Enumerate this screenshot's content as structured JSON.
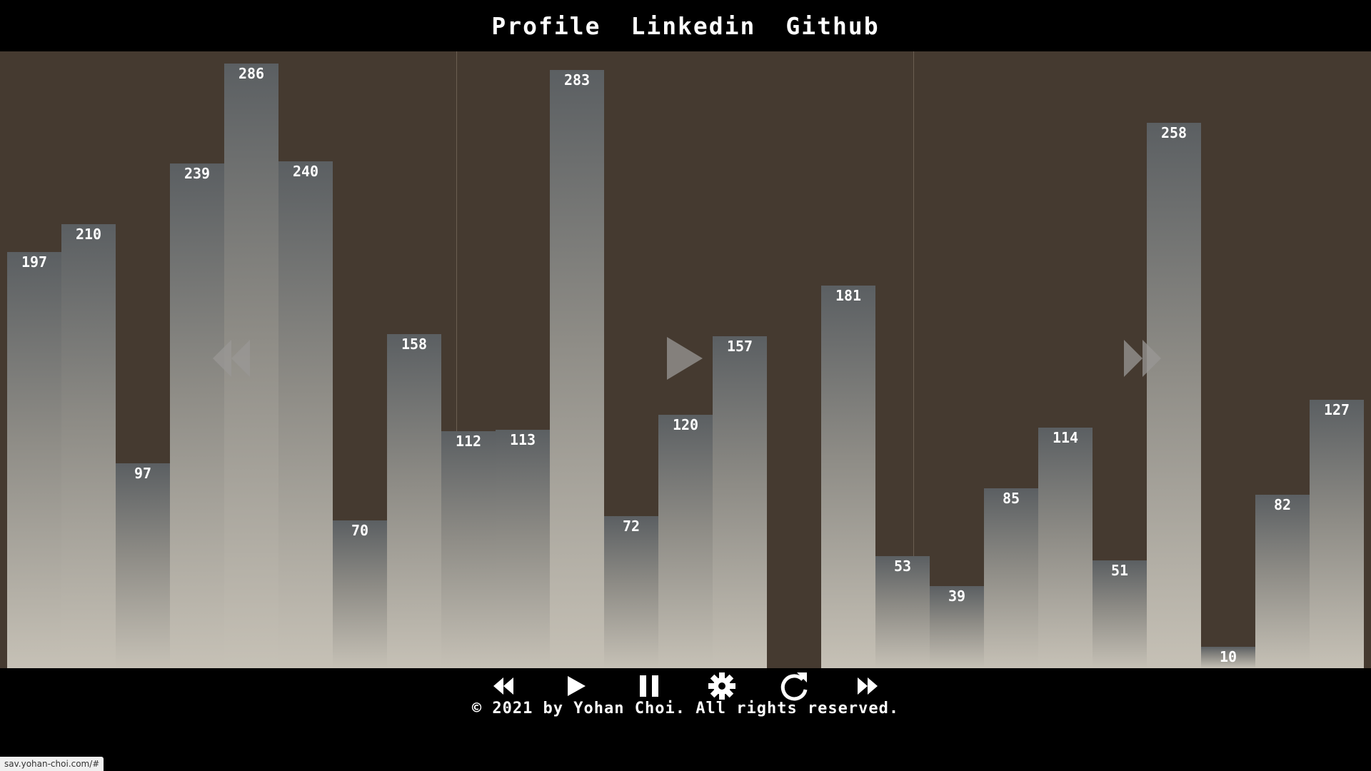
{
  "header": {
    "nav": [
      {
        "label": "Profile"
      },
      {
        "label": "Linkedin"
      },
      {
        "label": "Github"
      }
    ]
  },
  "visualizer": {
    "bars": [
      197,
      210,
      97,
      239,
      286,
      240,
      70,
      158,
      112,
      113,
      283,
      72,
      120,
      157,
      0,
      181,
      53,
      39,
      85,
      114,
      51,
      258,
      10,
      82,
      127
    ],
    "max_value": 286,
    "zone_icons": [
      "rewind-icon",
      "play-icon",
      "fast-forward-icon"
    ]
  },
  "controls": {
    "buttons": [
      "rewind-icon",
      "play-icon",
      "pause-icon",
      "gear-icon",
      "refresh-icon",
      "fast-forward-icon"
    ]
  },
  "footer": {
    "text": "© 2021 by Yohan Choi. All rights reserved."
  },
  "status_bar": {
    "url": "sav.yohan-choi.com/#"
  },
  "colors": {
    "background": "#000000",
    "stage": "#453a30",
    "bar_top": "#5b5f62",
    "bar_bottom": "#c6c1b6",
    "text": "#ffffff"
  }
}
